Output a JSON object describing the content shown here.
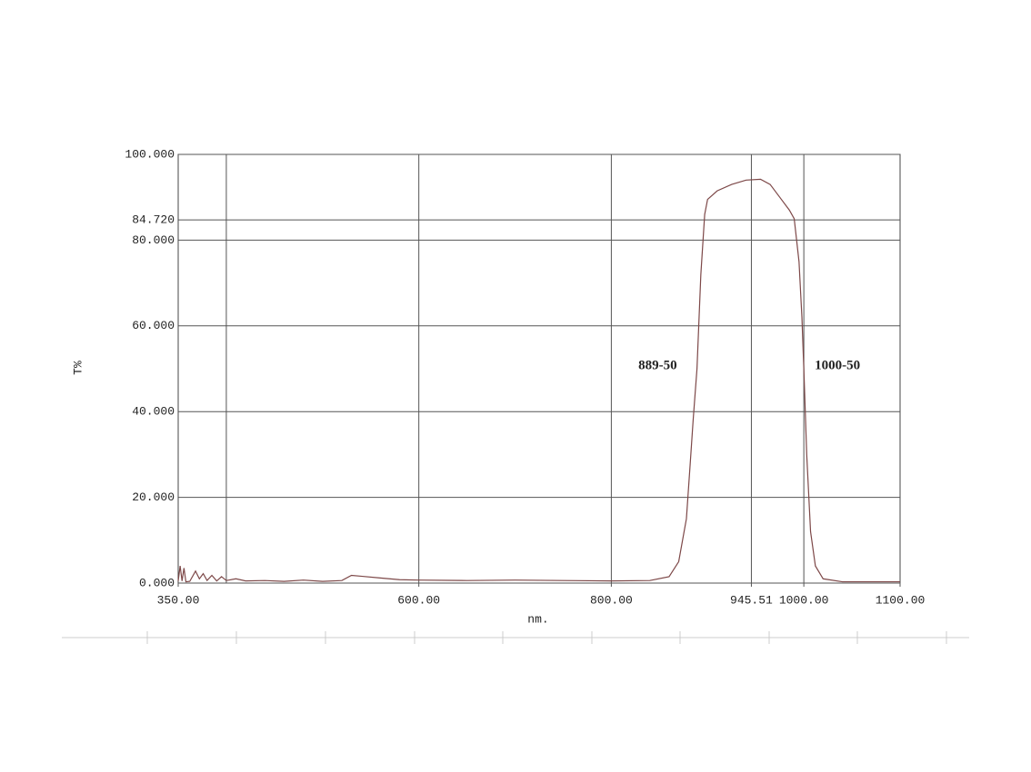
{
  "chart_data": {
    "type": "line",
    "y_label": "T%",
    "x_label": "nm.",
    "xlim": [
      350,
      1100
    ],
    "ylim": [
      0,
      100
    ],
    "xticks": [
      {
        "value": 350,
        "label": "350.00"
      },
      {
        "value": 600,
        "label": "600.00"
      },
      {
        "value": 800,
        "label": "800.00"
      },
      {
        "value": 945.51,
        "label": "945.51"
      },
      {
        "value": 1000,
        "label": "1000.00"
      },
      {
        "value": 1100,
        "label": "1100.00"
      }
    ],
    "xgrid_lines": [
      400,
      600,
      800,
      945.51,
      1000
    ],
    "yticks": [
      {
        "value": 0,
        "label": "0.000"
      },
      {
        "value": 20,
        "label": "20.000"
      },
      {
        "value": 40,
        "label": "40.000"
      },
      {
        "value": 60,
        "label": "60.000"
      },
      {
        "value": 80,
        "label": "80.000"
      },
      {
        "value": 84.72,
        "label": "84.720"
      },
      {
        "value": 100,
        "label": "100.000"
      }
    ],
    "annotations": [
      {
        "text": "889-50",
        "x": 889,
        "y": 50
      },
      {
        "text": "1000-50",
        "x": 1000,
        "y": 50
      }
    ],
    "series": [
      {
        "name": "T%",
        "color": "#7d4848",
        "x": [
          350,
          352,
          354,
          356,
          358,
          362,
          368,
          372,
          376,
          380,
          385,
          390,
          395,
          400,
          410,
          420,
          440,
          460,
          480,
          500,
          520,
          530,
          540,
          560,
          580,
          600,
          650,
          700,
          750,
          800,
          840,
          860,
          870,
          878,
          882,
          885,
          889,
          893,
          897,
          900,
          910,
          925,
          940,
          955,
          965,
          975,
          985,
          990,
          995,
          998,
          1000,
          1003,
          1007,
          1012,
          1020,
          1040,
          1100
        ],
        "values": [
          0.5,
          4,
          0.5,
          3.5,
          0.3,
          0.4,
          2.8,
          1.0,
          2.2,
          0.6,
          1.8,
          0.5,
          1.5,
          0.6,
          1.0,
          0.5,
          0.6,
          0.4,
          0.7,
          0.4,
          0.6,
          1.8,
          1.6,
          1.2,
          0.8,
          0.7,
          0.6,
          0.7,
          0.6,
          0.5,
          0.6,
          1.5,
          5,
          15,
          28,
          38,
          50,
          72,
          86,
          89.5,
          91.5,
          93,
          94,
          94.2,
          93,
          90,
          87,
          85,
          75,
          62,
          50,
          30,
          12,
          4,
          1,
          0.3,
          0.3
        ]
      }
    ]
  }
}
